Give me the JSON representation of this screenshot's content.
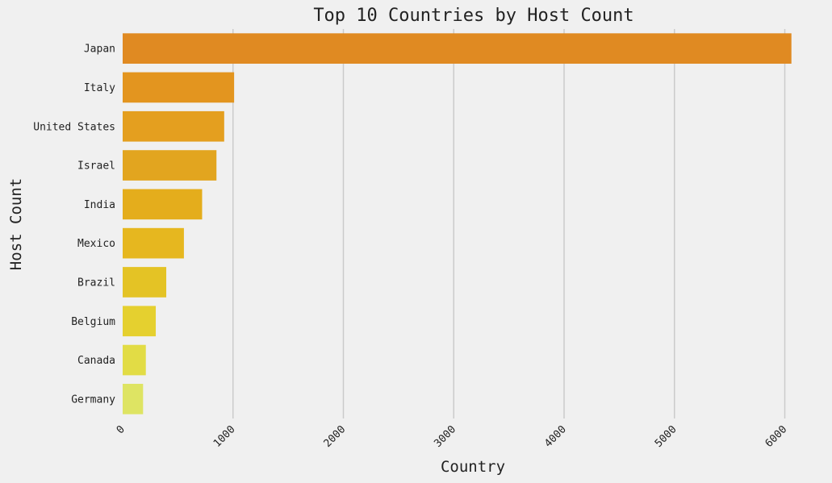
{
  "chart_data": {
    "type": "bar",
    "orientation": "horizontal",
    "title": "Top 10 Countries by Host Count",
    "xlabel": "Country",
    "ylabel": "Host Count",
    "categories": [
      "Japan",
      "Italy",
      "United States",
      "Israel",
      "India",
      "Mexico",
      "Brazil",
      "Belgium",
      "Canada",
      "Germany"
    ],
    "values": [
      6060,
      1010,
      920,
      850,
      720,
      555,
      395,
      300,
      210,
      185
    ],
    "bar_colors": [
      "#e08a22",
      "#e3951f",
      "#e49f1f",
      "#e2a51f",
      "#e4ad1c",
      "#e6b71f",
      "#e4c325",
      "#e5d02f",
      "#e2dc45",
      "#dee463"
    ],
    "xlim": [
      0,
      6200
    ],
    "x_ticks": [
      "0",
      "1000",
      "2000",
      "3000",
      "4000",
      "5000",
      "6000"
    ],
    "x_tick_values": [
      0,
      1000,
      2000,
      3000,
      4000,
      5000,
      6000
    ],
    "grid": true,
    "grid_axis": "x"
  }
}
